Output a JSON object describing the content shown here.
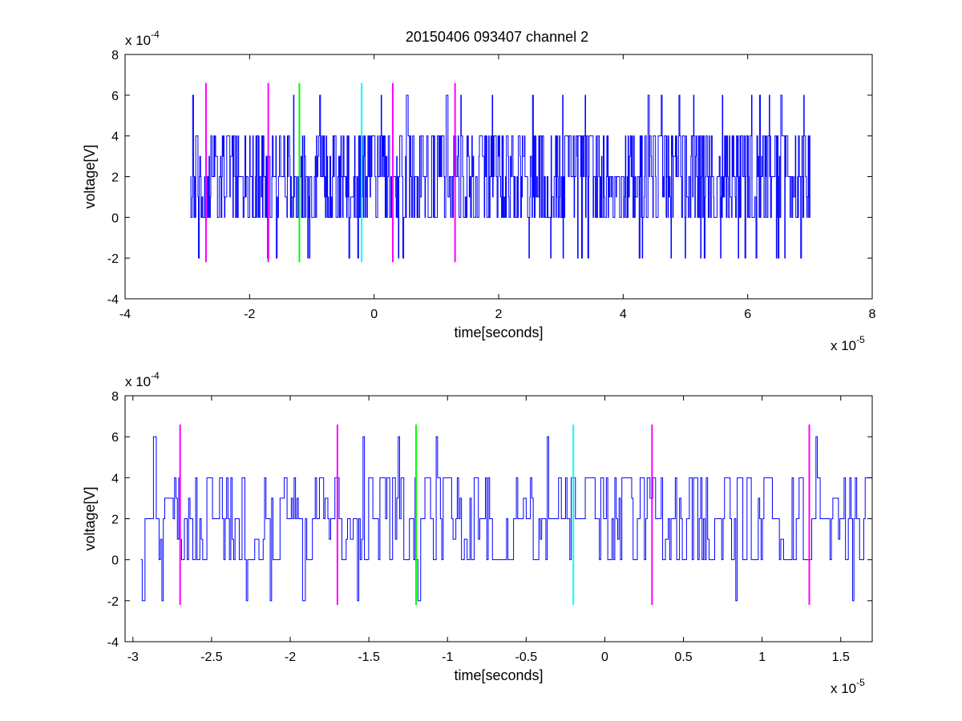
{
  "title": "20150406 093407 channel 2",
  "chart_data": [
    {
      "type": "line",
      "title": "20150406 093407 channel 2",
      "xlabel": "time[seconds]",
      "ylabel": "voltage[V]",
      "x_multiplier": {
        "base": "x 10",
        "exponent": "-5"
      },
      "y_multiplier": {
        "base": "x 10",
        "exponent": "-4"
      },
      "xlim": [
        -4,
        8
      ],
      "ylim": [
        -4,
        8
      ],
      "xticks": [
        -4,
        -2,
        0,
        2,
        4,
        6,
        8
      ],
      "yticks": [
        -4,
        -2,
        0,
        2,
        4,
        6,
        8
      ],
      "xtick_labels": [
        "-4",
        "-2",
        "0",
        "2",
        "4",
        "6",
        "8"
      ],
      "ytick_labels": [
        "-4",
        "-2",
        "0",
        "2",
        "4",
        "6",
        "8"
      ],
      "grid": false,
      "signal": {
        "color": "#0000ff",
        "x_range": [
          -2.95,
          7.0
        ],
        "levels": [
          -2,
          0,
          1,
          2,
          3,
          4,
          6
        ],
        "description": "quantized noisy voltage trace mostly between 0 and 4 with occasional spikes to -2 and 6"
      },
      "markers": [
        {
          "x": -2.7,
          "color": "#ff00ff",
          "y_range": [
            -2.2,
            6.6
          ]
        },
        {
          "x": -1.7,
          "color": "#ff00ff",
          "y_range": [
            -2.2,
            6.6
          ]
        },
        {
          "x": -1.2,
          "color": "#00ff00",
          "y_range": [
            -2.2,
            6.6
          ]
        },
        {
          "x": -0.2,
          "color": "#00ffff",
          "y_range": [
            -2.2,
            6.6
          ]
        },
        {
          "x": 0.3,
          "color": "#ff00ff",
          "y_range": [
            -2.2,
            6.6
          ]
        },
        {
          "x": 1.3,
          "color": "#ff00ff",
          "y_range": [
            -2.2,
            6.6
          ]
        }
      ]
    },
    {
      "type": "line",
      "title": "",
      "xlabel": "time[seconds]",
      "ylabel": "voltage[V]",
      "x_multiplier": {
        "base": "x 10",
        "exponent": "-5"
      },
      "y_multiplier": {
        "base": "x 10",
        "exponent": "-4"
      },
      "xlim": [
        -3.05,
        1.7
      ],
      "ylim": [
        -4,
        8
      ],
      "xticks": [
        -3,
        -2.5,
        -2,
        -1.5,
        -1,
        -0.5,
        0,
        0.5,
        1,
        1.5
      ],
      "yticks": [
        -4,
        -2,
        0,
        2,
        4,
        6,
        8
      ],
      "xtick_labels": [
        "-3",
        "-2.5",
        "-2",
        "-1.5",
        "-1",
        "-0.5",
        "0",
        "0.5",
        "1",
        "1.5"
      ],
      "ytick_labels": [
        "-4",
        "-2",
        "0",
        "2",
        "4",
        "6",
        "8"
      ],
      "grid": false,
      "signal": {
        "color": "#0000ff",
        "x_range": [
          -2.95,
          1.7
        ],
        "levels": [
          -2,
          -1,
          0,
          1,
          2,
          3,
          4,
          5,
          6
        ],
        "description": "zoomed view of the same quantized noisy trace"
      },
      "markers": [
        {
          "x": -2.7,
          "color": "#ff00ff",
          "y_range": [
            -2.2,
            6.6
          ]
        },
        {
          "x": -1.7,
          "color": "#ff00ff",
          "y_range": [
            -2.2,
            6.6
          ]
        },
        {
          "x": -1.2,
          "color": "#00ff00",
          "y_range": [
            -2.2,
            6.6
          ]
        },
        {
          "x": -0.2,
          "color": "#00ffff",
          "y_range": [
            -2.2,
            6.6
          ]
        },
        {
          "x": 0.3,
          "color": "#ff00ff",
          "y_range": [
            -2.2,
            6.6
          ]
        },
        {
          "x": 1.3,
          "color": "#ff00ff",
          "y_range": [
            -2.2,
            6.6
          ]
        }
      ]
    }
  ]
}
